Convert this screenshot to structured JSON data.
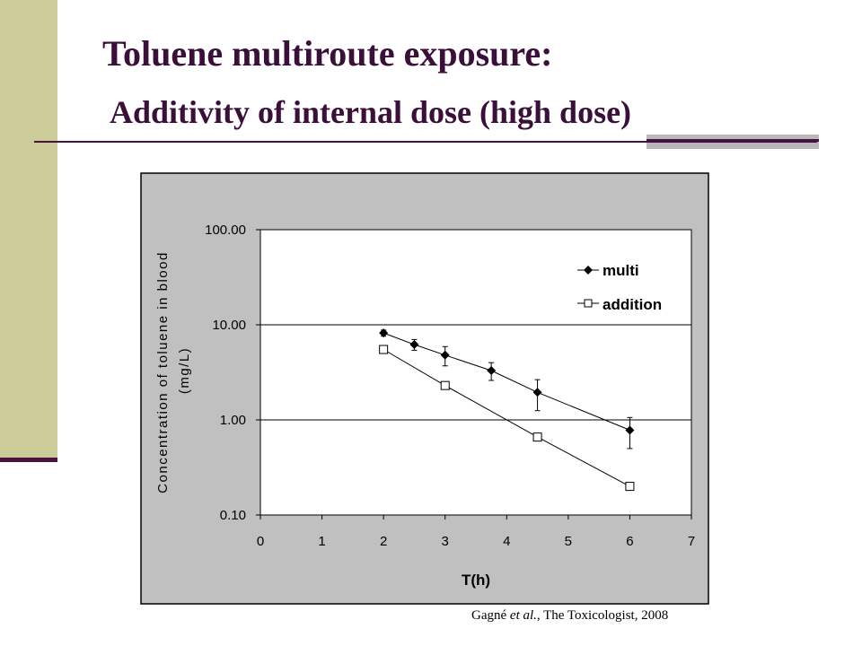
{
  "slide": {
    "title_bold": "Toluene multiroute exposure:",
    "title_sub": "Additivity of internal dose (high dose)"
  },
  "citation": {
    "authors": "Gagné",
    "etal": "et al.",
    "journal": ", The Toxicologist, 2008"
  },
  "colors": {
    "band": "#cccc99",
    "accent": "#4a1042",
    "plot_bg": "#c0c0c0",
    "plot_area": "#ffffff"
  },
  "chart_data": {
    "type": "line",
    "xlabel": "T(h)",
    "ylabel_line1": "Concentration of toluene in blood",
    "ylabel_line2": "(mg/L)",
    "xlim": [
      0,
      7
    ],
    "ylim": [
      0.1,
      100
    ],
    "yscale": "log",
    "x_ticks": [
      "0",
      "1",
      "2",
      "3",
      "4",
      "5",
      "6",
      "7"
    ],
    "y_ticks": [
      "100.00",
      "10.00",
      "1.00",
      "0.10"
    ],
    "y_tick_values": [
      100,
      10,
      1,
      0.1
    ],
    "grid": "horizontal at major y ticks",
    "legend_position": "top-right",
    "series": [
      {
        "name": "multi",
        "marker": "filled-diamond",
        "x": [
          2,
          2.5,
          3,
          3.75,
          4.5,
          6
        ],
        "y": [
          8.2,
          6.2,
          4.8,
          3.3,
          1.95,
          0.78
        ],
        "error": [
          0.6,
          0.8,
          1.1,
          0.7,
          0.7,
          0.28
        ]
      },
      {
        "name": "addition",
        "marker": "open-square",
        "x": [
          2,
          3,
          4.5,
          6
        ],
        "y": [
          5.5,
          2.3,
          0.66,
          0.2
        ]
      }
    ]
  }
}
